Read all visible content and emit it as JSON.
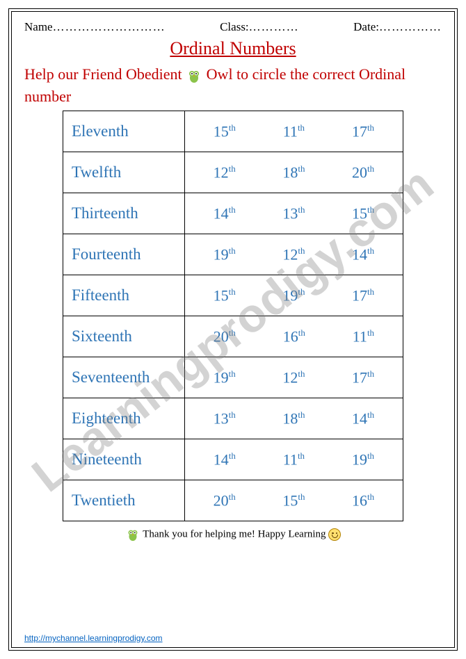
{
  "header": {
    "name_label": "Name",
    "name_dots": "………………………",
    "class_label": "Class:",
    "class_dots": "…………",
    "date_label": "Date:",
    "date_dots": "……………"
  },
  "title": "Ordinal Numbers",
  "instruction_before": "Help our Friend Obedient ",
  "instruction_after": " Owl to circle the correct Ordinal number",
  "rows": [
    {
      "word": "Eleventh",
      "opts": [
        {
          "n": "15",
          "s": "th"
        },
        {
          "n": "11",
          "s": "th"
        },
        {
          "n": "17",
          "s": "th"
        }
      ]
    },
    {
      "word": "Twelfth",
      "opts": [
        {
          "n": "12",
          "s": "th"
        },
        {
          "n": "18",
          "s": "th"
        },
        {
          "n": "20",
          "s": "th"
        }
      ]
    },
    {
      "word": "Thirteenth",
      "opts": [
        {
          "n": "14",
          "s": "th"
        },
        {
          "n": "13",
          "s": "th"
        },
        {
          "n": "15",
          "s": "th"
        }
      ]
    },
    {
      "word": "Fourteenth",
      "opts": [
        {
          "n": "19",
          "s": "th"
        },
        {
          "n": "12",
          "s": "th"
        },
        {
          "n": "14",
          "s": "th"
        }
      ]
    },
    {
      "word": "Fifteenth",
      "opts": [
        {
          "n": "15",
          "s": "th"
        },
        {
          "n": "19",
          "s": "th"
        },
        {
          "n": "17",
          "s": "th"
        }
      ]
    },
    {
      "word": "Sixteenth",
      "opts": [
        {
          "n": "20",
          "s": "th"
        },
        {
          "n": "16",
          "s": "th"
        },
        {
          "n": "11",
          "s": "th"
        }
      ]
    },
    {
      "word": "Seventeenth",
      "opts": [
        {
          "n": "19",
          "s": "th"
        },
        {
          "n": "12",
          "s": "th"
        },
        {
          "n": "17",
          "s": "th"
        }
      ]
    },
    {
      "word": "Eighteenth",
      "opts": [
        {
          "n": "13",
          "s": "th"
        },
        {
          "n": "18",
          "s": "th"
        },
        {
          "n": "14",
          "s": "th"
        }
      ]
    },
    {
      "word": "Nineteenth",
      "opts": [
        {
          "n": "14",
          "s": "th"
        },
        {
          "n": "11",
          "s": "th"
        },
        {
          "n": "19",
          "s": "th"
        }
      ]
    },
    {
      "word": "Twentieth",
      "opts": [
        {
          "n": "20",
          "s": "th"
        },
        {
          "n": "15",
          "s": "th"
        },
        {
          "n": "16",
          "s": "th"
        }
      ]
    }
  ],
  "footer_text": "Thank you for helping me! Happy Learning ",
  "watermark": "Learningprodigy.com",
  "link": "http://mychannel.learningprodigy.com",
  "colors": {
    "title": "#c00000",
    "instruction": "#c00000",
    "table_text": "#2e74b5",
    "link": "#0563c1",
    "watermark": "rgba(128,128,128,0.35)"
  }
}
